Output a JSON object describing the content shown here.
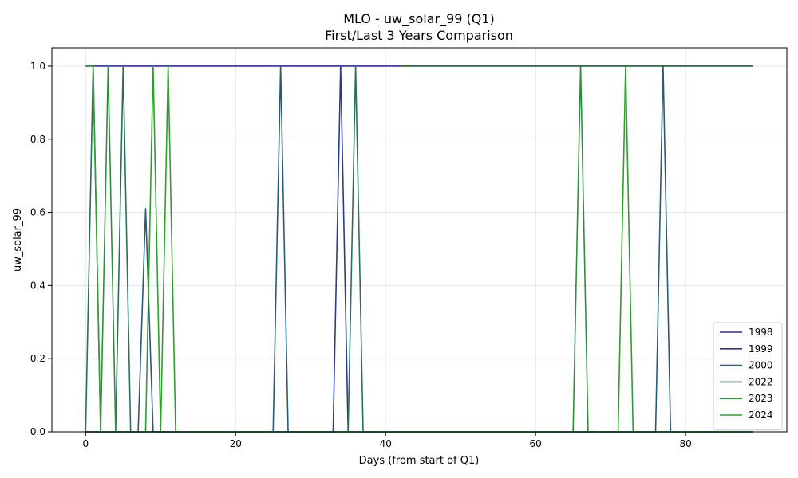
{
  "chart_data": {
    "type": "line",
    "title": "MLO - uw_solar_99 (Q1)",
    "subtitle": "First/Last 3 Years Comparison",
    "xlabel": "Days (from start of Q1)",
    "ylabel": "uw_solar_99",
    "xlim": [
      -4.5,
      93.5
    ],
    "ylim": [
      0,
      1.05
    ],
    "x_ticks": [
      0,
      20,
      40,
      60,
      80
    ],
    "y_ticks": [
      0.0,
      0.2,
      0.4,
      0.6,
      0.8,
      1.0
    ],
    "grid": true,
    "legend_position": "bottom-right",
    "series": [
      {
        "name": "1998",
        "color": "#2e2fa8",
        "points": [
          [
            0,
            1
          ],
          [
            42,
            1
          ]
        ]
      },
      {
        "name": "1999",
        "color": "#263d8a",
        "points": [
          [
            0,
            0
          ],
          [
            33,
            0
          ],
          [
            34,
            1
          ],
          [
            35,
            0
          ],
          [
            89,
            0
          ]
        ]
      },
      {
        "name": "2000",
        "color": "#2a5a78",
        "points": [
          [
            0,
            0
          ],
          [
            7,
            0
          ],
          [
            8,
            0.61
          ],
          [
            9,
            0
          ],
          [
            25,
            0
          ],
          [
            26,
            1
          ],
          [
            27,
            0
          ],
          [
            76,
            0
          ],
          [
            77,
            1
          ],
          [
            78,
            0
          ],
          [
            89,
            0
          ]
        ]
      },
      {
        "name": "2022",
        "color": "#28705a",
        "points": [
          [
            0,
            0
          ],
          [
            1,
            1
          ],
          [
            2,
            0
          ],
          [
            4,
            0
          ],
          [
            5,
            1
          ],
          [
            6,
            0
          ],
          [
            35,
            0
          ],
          [
            36,
            1
          ],
          [
            37,
            0
          ],
          [
            89,
            0
          ]
        ]
      },
      {
        "name": "2023",
        "color": "#2f8c3f",
        "points": [
          [
            0,
            0
          ],
          [
            1,
            0
          ],
          [
            2,
            0
          ],
          [
            3,
            1
          ],
          [
            4,
            0
          ],
          [
            65,
            0
          ],
          [
            66,
            1
          ],
          [
            67,
            0
          ],
          [
            89,
            0
          ]
        ]
      },
      {
        "name": "2024",
        "color": "#2ca02c",
        "points": [
          [
            0,
            1
          ],
          [
            1,
            1
          ],
          [
            2,
            0
          ],
          [
            8,
            0
          ],
          [
            9,
            1
          ],
          [
            10,
            0
          ],
          [
            11,
            1
          ],
          [
            12,
            0
          ],
          [
            71,
            0
          ],
          [
            72,
            1
          ],
          [
            73,
            0
          ],
          [
            89,
            0
          ]
        ]
      },
      {
        "name": "",
        "color": "#1e5a34",
        "points": [
          [
            42,
            1
          ],
          [
            89,
            1
          ]
        ]
      }
    ]
  }
}
